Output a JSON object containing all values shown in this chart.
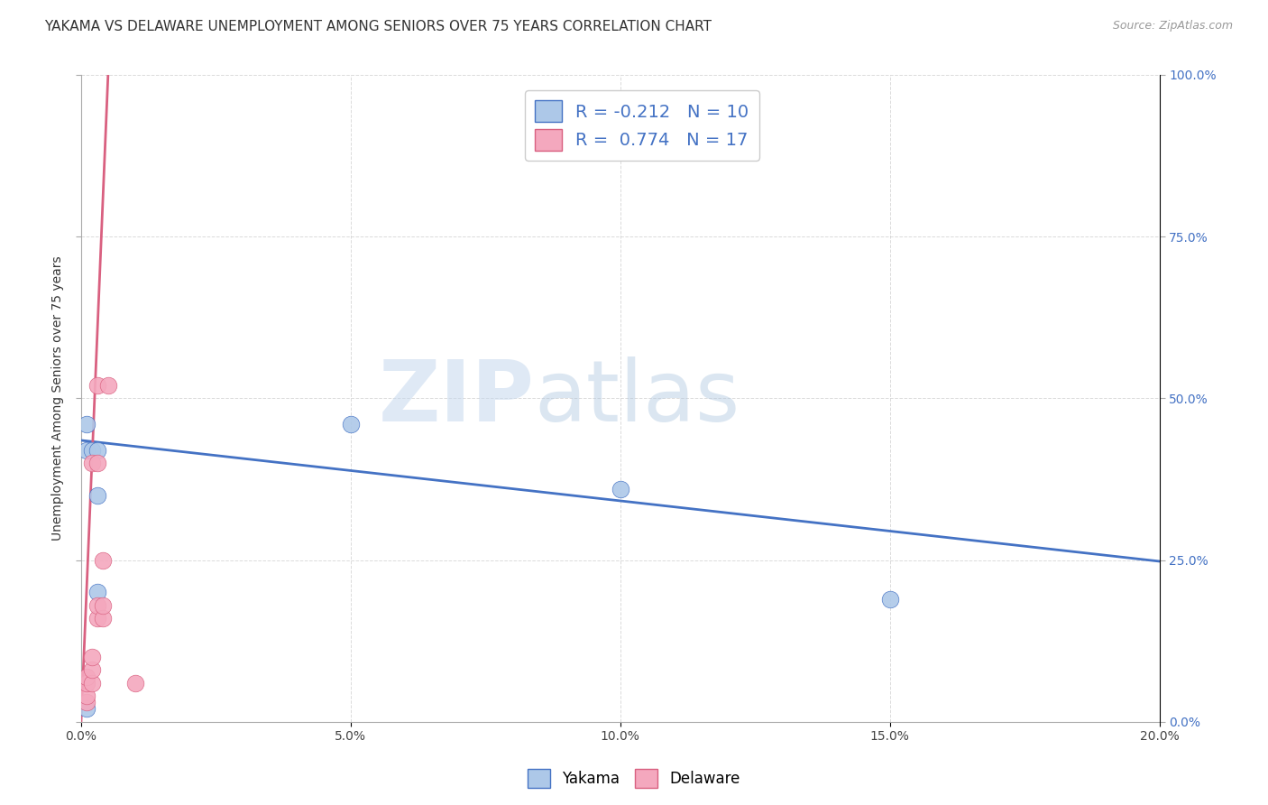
{
  "title": "YAKAMA VS DELAWARE UNEMPLOYMENT AMONG SENIORS OVER 75 YEARS CORRELATION CHART",
  "source": "Source: ZipAtlas.com",
  "ylabel": "Unemployment Among Seniors over 75 years",
  "watermark": "ZIPatlas",
  "xlim": [
    0.0,
    0.2
  ],
  "ylim": [
    0.0,
    1.0
  ],
  "xticks": [
    0.0,
    0.05,
    0.1,
    0.15,
    0.2
  ],
  "yticks": [
    0.0,
    0.25,
    0.5,
    0.75,
    1.0
  ],
  "yakama_R": -0.212,
  "yakama_N": 10,
  "delaware_R": 0.774,
  "delaware_N": 17,
  "yakama_color": "#adc8e8",
  "delaware_color": "#f4a8be",
  "trend_yakama_color": "#4472c4",
  "trend_delaware_color": "#d96080",
  "legend_labels": [
    "Yakama",
    "Delaware"
  ],
  "yakama_x": [
    0.001,
    0.001,
    0.002,
    0.003,
    0.003,
    0.003,
    0.05,
    0.1,
    0.15,
    0.001
  ],
  "yakama_y": [
    0.46,
    0.42,
    0.42,
    0.42,
    0.35,
    0.2,
    0.46,
    0.36,
    0.19,
    0.02
  ],
  "delaware_x": [
    0.001,
    0.001,
    0.001,
    0.001,
    0.002,
    0.002,
    0.002,
    0.002,
    0.003,
    0.003,
    0.003,
    0.003,
    0.004,
    0.004,
    0.004,
    0.005,
    0.01
  ],
  "delaware_y": [
    0.03,
    0.04,
    0.06,
    0.07,
    0.06,
    0.08,
    0.1,
    0.4,
    0.16,
    0.18,
    0.52,
    0.4,
    0.16,
    0.18,
    0.25,
    0.52,
    0.06
  ],
  "trend_yakama_x0": 0.0,
  "trend_yakama_y0": 0.435,
  "trend_yakama_x1": 0.2,
  "trend_yakama_y1": 0.248,
  "trend_delaware_x0": 0.0,
  "trend_delaware_y0": 0.0,
  "trend_delaware_x1": 0.005,
  "trend_delaware_y1": 1.0,
  "background_color": "#ffffff",
  "grid_color": "#cccccc",
  "title_fontsize": 11,
  "axis_label_fontsize": 10,
  "tick_fontsize": 10,
  "legend_fontsize": 14
}
